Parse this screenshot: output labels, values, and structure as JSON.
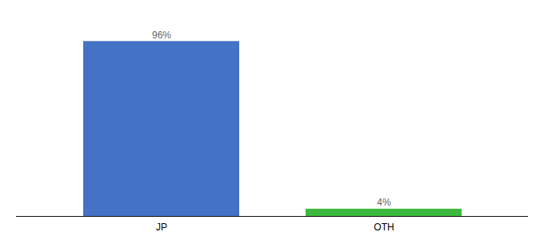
{
  "chart_data": {
    "type": "bar",
    "categories": [
      "JP",
      "OTH"
    ],
    "values": [
      96,
      4
    ],
    "value_labels": [
      "96%",
      "4%"
    ],
    "colors": [
      "#4472c4",
      "#3dba3d"
    ],
    "ylim": [
      0,
      108
    ],
    "data_labels": true,
    "tick_labels": "x",
    "grid": false
  }
}
